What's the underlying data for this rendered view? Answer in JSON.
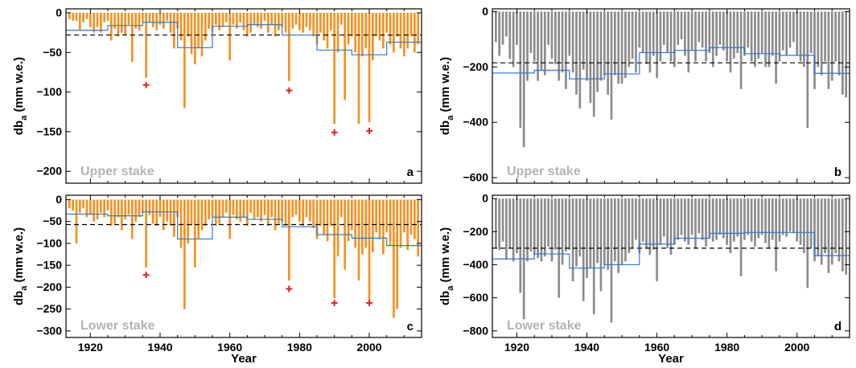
{
  "figure": {
    "x_axis_title": "Year",
    "y_axis_title_main": "db",
    "y_axis_title_sub": "a",
    "y_axis_title_unit": " (mm w.e.)"
  },
  "chart_data": [
    {
      "panel_letter": "a",
      "stake_label": "Upper stake",
      "type": "bar",
      "bar_color": "#f59120",
      "step_color": "#2b7bd8",
      "mean_line_color": "#000000",
      "marker_color": "#e8201e",
      "xlabel": "Year",
      "ylabel": "db_a (mm w.e.)",
      "xlim": [
        1913,
        2015
      ],
      "ylim": [
        -215,
        5
      ],
      "x_ticks": [
        1920,
        1940,
        1960,
        1980,
        2000
      ],
      "y_ticks": [
        0,
        -50,
        -100,
        -150,
        -200
      ],
      "x": [
        1914,
        1915,
        1916,
        1917,
        1918,
        1919,
        1920,
        1921,
        1922,
        1923,
        1924,
        1925,
        1926,
        1927,
        1928,
        1929,
        1930,
        1931,
        1932,
        1933,
        1934,
        1935,
        1936,
        1937,
        1938,
        1939,
        1940,
        1941,
        1942,
        1943,
        1944,
        1945,
        1946,
        1947,
        1948,
        1949,
        1950,
        1951,
        1952,
        1953,
        1954,
        1955,
        1956,
        1957,
        1958,
        1959,
        1960,
        1961,
        1962,
        1963,
        1964,
        1965,
        1966,
        1967,
        1968,
        1969,
        1970,
        1971,
        1972,
        1973,
        1974,
        1975,
        1976,
        1977,
        1978,
        1979,
        1980,
        1981,
        1982,
        1983,
        1984,
        1985,
        1986,
        1987,
        1988,
        1989,
        1990,
        1991,
        1992,
        1993,
        1994,
        1995,
        1996,
        1997,
        1998,
        1999,
        2000,
        2001,
        2002,
        2003,
        2004,
        2005,
        2006,
        2007,
        2008,
        2009,
        2010,
        2011,
        2012,
        2013,
        2014
      ],
      "values": [
        -8,
        -10,
        -10,
        -22,
        -12,
        -8,
        -18,
        -25,
        -18,
        -25,
        -12,
        -10,
        -35,
        -20,
        -30,
        -25,
        -28,
        -15,
        -62,
        -20,
        -22,
        -12,
        -82,
        -12,
        -18,
        -22,
        -15,
        -20,
        -10,
        -25,
        -45,
        -20,
        -35,
        -120,
        -30,
        -52,
        -65,
        -45,
        -55,
        -35,
        -20,
        -25,
        -15,
        -22,
        -18,
        -12,
        -60,
        -15,
        -20,
        -12,
        -22,
        -30,
        -25,
        -15,
        -18,
        -20,
        -10,
        -25,
        -15,
        -30,
        -22,
        -18,
        -25,
        -86,
        -20,
        -15,
        -22,
        -25,
        -18,
        -22,
        -30,
        -40,
        -25,
        -35,
        -45,
        -22,
        -140,
        -50,
        -15,
        -110,
        -40,
        -30,
        -50,
        -140,
        -55,
        -45,
        -138,
        -60,
        -30,
        -35,
        -45,
        -25,
        -40,
        -50,
        -30,
        -45,
        -55,
        -45,
        -30,
        -50,
        -40
      ],
      "mean": -28,
      "steps": [
        {
          "from": 1913,
          "to": 1925,
          "value": -22
        },
        {
          "from": 1925,
          "to": 1935,
          "value": -16
        },
        {
          "from": 1935,
          "to": 1945,
          "value": -12
        },
        {
          "from": 1945,
          "to": 1955,
          "value": -44
        },
        {
          "from": 1955,
          "to": 1965,
          "value": -17
        },
        {
          "from": 1965,
          "to": 1975,
          "value": -15
        },
        {
          "from": 1975,
          "to": 1985,
          "value": -28
        },
        {
          "from": 1985,
          "to": 1995,
          "value": -47
        },
        {
          "from": 1995,
          "to": 2005,
          "value": -53
        },
        {
          "from": 2005,
          "to": 2015,
          "value": -37
        }
      ],
      "markers": [
        {
          "x": 1936,
          "y": -91
        },
        {
          "x": 1977,
          "y": -98
        },
        {
          "x": 1990,
          "y": -151
        },
        {
          "x": 2000,
          "y": -149
        }
      ]
    },
    {
      "panel_letter": "b",
      "stake_label": "Upper stake",
      "type": "bar",
      "bar_color": "#8c8c8c",
      "step_color": "#2b7bd8",
      "mean_line_color": "#000000",
      "xlabel": "",
      "ylabel": "db_a (mm w.e.)",
      "xlim": [
        1913,
        2015
      ],
      "ylim": [
        -620,
        10
      ],
      "x_ticks": [
        1920,
        1940,
        1960,
        1980,
        2000
      ],
      "y_ticks": [
        0,
        -200,
        -400,
        -600
      ],
      "x": [
        1914,
        1915,
        1916,
        1917,
        1918,
        1919,
        1920,
        1921,
        1922,
        1923,
        1924,
        1925,
        1926,
        1927,
        1928,
        1929,
        1930,
        1931,
        1932,
        1933,
        1934,
        1935,
        1936,
        1937,
        1938,
        1939,
        1940,
        1941,
        1942,
        1943,
        1944,
        1945,
        1946,
        1947,
        1948,
        1949,
        1950,
        1951,
        1952,
        1953,
        1954,
        1955,
        1956,
        1957,
        1958,
        1959,
        1960,
        1961,
        1962,
        1963,
        1964,
        1965,
        1966,
        1967,
        1968,
        1969,
        1970,
        1971,
        1972,
        1973,
        1974,
        1975,
        1976,
        1977,
        1978,
        1979,
        1980,
        1981,
        1982,
        1983,
        1984,
        1985,
        1986,
        1987,
        1988,
        1989,
        1990,
        1991,
        1992,
        1993,
        1994,
        1995,
        1996,
        1997,
        1998,
        1999,
        2000,
        2001,
        2002,
        2003,
        2004,
        2005,
        2006,
        2007,
        2008,
        2009,
        2010,
        2011,
        2012,
        2013,
        2014
      ],
      "values": [
        -110,
        -160,
        -120,
        -90,
        -170,
        -200,
        -120,
        -420,
        -490,
        -250,
        -150,
        -180,
        -250,
        -210,
        -230,
        -120,
        -170,
        -190,
        -250,
        -220,
        -280,
        -160,
        -220,
        -300,
        -350,
        -210,
        -250,
        -330,
        -380,
        -290,
        -250,
        -230,
        -300,
        -390,
        -230,
        -260,
        -260,
        -240,
        -200,
        -170,
        -220,
        -130,
        -150,
        -190,
        -220,
        -160,
        -240,
        -180,
        -120,
        -150,
        -180,
        -200,
        -120,
        -100,
        -160,
        -220,
        -140,
        -180,
        -110,
        -130,
        -180,
        -150,
        -200,
        -160,
        -120,
        -140,
        -180,
        -220,
        -170,
        -150,
        -280,
        -160,
        -130,
        -180,
        -200,
        -170,
        -150,
        -200,
        -200,
        -160,
        -260,
        -180,
        -140,
        -160,
        -130,
        -110,
        -160,
        -180,
        -200,
        -420,
        -150,
        -280,
        -200,
        -230,
        -180,
        -280,
        -250,
        -180,
        -230,
        -300,
        -310
      ],
      "mean": -185,
      "steps": [
        {
          "from": 1913,
          "to": 1925,
          "value": -222
        },
        {
          "from": 1925,
          "to": 1935,
          "value": -212
        },
        {
          "from": 1935,
          "to": 1945,
          "value": -243
        },
        {
          "from": 1945,
          "to": 1955,
          "value": -225
        },
        {
          "from": 1955,
          "to": 1965,
          "value": -148
        },
        {
          "from": 1965,
          "to": 1975,
          "value": -140
        },
        {
          "from": 1975,
          "to": 1985,
          "value": -130
        },
        {
          "from": 1985,
          "to": 1995,
          "value": -152
        },
        {
          "from": 1995,
          "to": 2005,
          "value": -158
        },
        {
          "from": 2005,
          "to": 2015,
          "value": -223
        }
      ],
      "markers": []
    },
    {
      "panel_letter": "c",
      "stake_label": "Lower stake",
      "type": "bar",
      "bar_color": "#f59120",
      "step_color": "#2b7bd8",
      "mean_line_color": "#000000",
      "marker_color": "#e8201e",
      "xlabel": "Year",
      "ylabel": "db_a (mm w.e.)",
      "xlim": [
        1913,
        2015
      ],
      "ylim": [
        -315,
        10
      ],
      "x_ticks": [
        1920,
        1940,
        1960,
        1980,
        2000
      ],
      "y_ticks": [
        0,
        -50,
        -100,
        -150,
        -200,
        -250,
        -300
      ],
      "x": [
        1914,
        1915,
        1916,
        1917,
        1918,
        1919,
        1920,
        1921,
        1922,
        1923,
        1924,
        1925,
        1926,
        1927,
        1928,
        1929,
        1930,
        1931,
        1932,
        1933,
        1934,
        1935,
        1936,
        1937,
        1938,
        1939,
        1940,
        1941,
        1942,
        1943,
        1944,
        1945,
        1946,
        1947,
        1948,
        1949,
        1950,
        1951,
        1952,
        1953,
        1954,
        1955,
        1956,
        1957,
        1958,
        1959,
        1960,
        1961,
        1962,
        1963,
        1964,
        1965,
        1966,
        1967,
        1968,
        1969,
        1970,
        1971,
        1972,
        1973,
        1974,
        1975,
        1976,
        1977,
        1978,
        1979,
        1980,
        1981,
        1982,
        1983,
        1984,
        1985,
        1986,
        1987,
        1988,
        1989,
        1990,
        1991,
        1992,
        1993,
        1994,
        1995,
        1996,
        1997,
        1998,
        1999,
        2000,
        2001,
        2002,
        2003,
        2004,
        2005,
        2006,
        2007,
        2008,
        2009,
        2010,
        2011,
        2012,
        2013,
        2014
      ],
      "values": [
        -20,
        -25,
        -100,
        -30,
        -20,
        -40,
        -35,
        -50,
        -45,
        -30,
        -40,
        -25,
        -60,
        -55,
        -40,
        -70,
        -45,
        -35,
        -90,
        -50,
        -40,
        -30,
        -155,
        -35,
        -55,
        -60,
        -40,
        -70,
        -50,
        -60,
        -85,
        -40,
        -110,
        -250,
        -100,
        -60,
        -155,
        -90,
        -70,
        -60,
        -45,
        -40,
        -60,
        -55,
        -40,
        -30,
        -90,
        -35,
        -45,
        -50,
        -40,
        -60,
        -30,
        -45,
        -40,
        -50,
        -35,
        -60,
        -40,
        -70,
        -55,
        -50,
        -60,
        -185,
        -40,
        -35,
        -50,
        -60,
        -40,
        -50,
        -65,
        -90,
        -60,
        -80,
        -95,
        -60,
        -225,
        -130,
        -40,
        -160,
        -95,
        -70,
        -110,
        -185,
        -125,
        -110,
        -230,
        -120,
        -75,
        -90,
        -125,
        -75,
        -105,
        -270,
        -250,
        -110,
        -75,
        -115,
        -80,
        -90,
        -130
      ],
      "mean": -57,
      "steps": [
        {
          "from": 1913,
          "to": 1925,
          "value": -33
        },
        {
          "from": 1925,
          "to": 1935,
          "value": -37
        },
        {
          "from": 1935,
          "to": 1945,
          "value": -28
        },
        {
          "from": 1945,
          "to": 1955,
          "value": -90
        },
        {
          "from": 1955,
          "to": 1965,
          "value": -40
        },
        {
          "from": 1965,
          "to": 1975,
          "value": -45
        },
        {
          "from": 1975,
          "to": 1985,
          "value": -62
        },
        {
          "from": 1985,
          "to": 1995,
          "value": -80
        },
        {
          "from": 1995,
          "to": 2005,
          "value": -88
        },
        {
          "from": 2005,
          "to": 2015,
          "value": -105
        }
      ],
      "markers": [
        {
          "x": 1936,
          "y": -172
        },
        {
          "x": 1977,
          "y": -204
        },
        {
          "x": 1990,
          "y": -236
        },
        {
          "x": 2000,
          "y": -236
        }
      ]
    },
    {
      "panel_letter": "d",
      "stake_label": "Lower stake",
      "type": "bar",
      "bar_color": "#8c8c8c",
      "step_color": "#2b7bd8",
      "mean_line_color": "#000000",
      "xlabel": "Year",
      "ylabel": "db_a (mm w.e.)",
      "xlim": [
        1913,
        2015
      ],
      "ylim": [
        -840,
        20
      ],
      "x_ticks": [
        1920,
        1940,
        1960,
        1980,
        2000
      ],
      "y_ticks": [
        0,
        -200,
        -400,
        -600,
        -800
      ],
      "x": [
        1914,
        1915,
        1916,
        1917,
        1918,
        1919,
        1920,
        1921,
        1922,
        1923,
        1924,
        1925,
        1926,
        1927,
        1928,
        1929,
        1930,
        1931,
        1932,
        1933,
        1934,
        1935,
        1936,
        1937,
        1938,
        1939,
        1940,
        1941,
        1942,
        1943,
        1944,
        1945,
        1946,
        1947,
        1948,
        1949,
        1950,
        1951,
        1952,
        1953,
        1954,
        1955,
        1956,
        1957,
        1958,
        1959,
        1960,
        1961,
        1962,
        1963,
        1964,
        1965,
        1966,
        1967,
        1968,
        1969,
        1970,
        1971,
        1972,
        1973,
        1974,
        1975,
        1976,
        1977,
        1978,
        1979,
        1980,
        1981,
        1982,
        1983,
        1984,
        1985,
        1986,
        1987,
        1988,
        1989,
        1990,
        1991,
        1992,
        1993,
        1994,
        1995,
        1996,
        1997,
        1998,
        1999,
        2000,
        2001,
        2002,
        2003,
        2004,
        2005,
        2006,
        2007,
        2008,
        2009,
        2010,
        2011,
        2012,
        2013,
        2014
      ],
      "values": [
        -300,
        -310,
        -260,
        -370,
        -300,
        -380,
        -330,
        -570,
        -730,
        -380,
        -320,
        -340,
        -360,
        -380,
        -350,
        -290,
        -380,
        -310,
        -600,
        -400,
        -320,
        -310,
        -500,
        -410,
        -350,
        -620,
        -480,
        -420,
        -700,
        -390,
        -560,
        -400,
        -430,
        -750,
        -380,
        -450,
        -400,
        -380,
        -330,
        -300,
        -250,
        -330,
        -260,
        -300,
        -340,
        -310,
        -500,
        -280,
        -230,
        -300,
        -340,
        -280,
        -250,
        -220,
        -260,
        -280,
        -220,
        -300,
        -210,
        -250,
        -290,
        -240,
        -260,
        -250,
        -220,
        -240,
        -280,
        -330,
        -260,
        -230,
        -470,
        -250,
        -220,
        -260,
        -290,
        -240,
        -220,
        -270,
        -300,
        -250,
        -440,
        -260,
        -220,
        -230,
        -200,
        -210,
        -260,
        -280,
        -330,
        -540,
        -300,
        -380,
        -350,
        -400,
        -330,
        -450,
        -400,
        -330,
        -380,
        -440,
        -460
      ],
      "mean": -300,
      "steps": [
        {
          "from": 1913,
          "to": 1925,
          "value": -365
        },
        {
          "from": 1925,
          "to": 1935,
          "value": -335
        },
        {
          "from": 1935,
          "to": 1945,
          "value": -420
        },
        {
          "from": 1945,
          "to": 1955,
          "value": -400
        },
        {
          "from": 1955,
          "to": 1965,
          "value": -275
        },
        {
          "from": 1965,
          "to": 1975,
          "value": -240
        },
        {
          "from": 1975,
          "to": 1985,
          "value": -210
        },
        {
          "from": 1985,
          "to": 1995,
          "value": -205
        },
        {
          "from": 1995,
          "to": 2005,
          "value": -205
        },
        {
          "from": 2005,
          "to": 2015,
          "value": -345
        }
      ],
      "markers": []
    }
  ]
}
